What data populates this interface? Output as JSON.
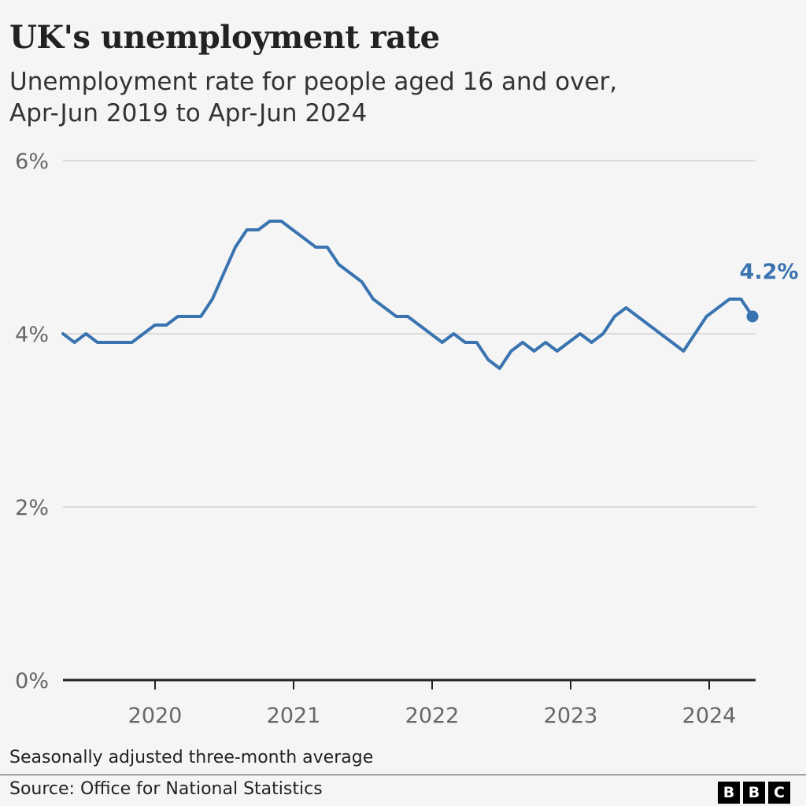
{
  "title": "UK's unemployment rate",
  "subtitle": [
    "Unemployment rate for people aged 16 and over,",
    "Apr-Jun 2019 to Apr-Jun 2024"
  ],
  "note": "Seasonally adjusted three-month average",
  "source": "Source: Office for National Statistics",
  "logo_letters": [
    "B",
    "B",
    "C"
  ],
  "colors": {
    "line": "#3a74b0",
    "grid": "#cccccc",
    "axis": "#222222",
    "tick_text": "#666666"
  },
  "chart_data": {
    "type": "line",
    "title": "UK's unemployment rate",
    "subtitle": "Unemployment rate for people aged 16 and over, Apr-Jun 2019 to Apr-Jun 2024",
    "xlabel": "",
    "ylabel": "",
    "ylim": [
      0,
      6
    ],
    "y_ticks": [
      {
        "value": 0,
        "label": "0%"
      },
      {
        "value": 2,
        "label": "2%"
      },
      {
        "value": 4,
        "label": "4%"
      },
      {
        "value": 6,
        "label": "6%"
      }
    ],
    "x_ticks": [
      "2020",
      "2021",
      "2022",
      "2023",
      "2024"
    ],
    "grid": true,
    "legend": "none",
    "x_start": "Apr-Jun 2019",
    "x_end": "Apr-Jun 2024",
    "series": [
      {
        "values": [
          4.0,
          3.9,
          4.0,
          3.9,
          3.9,
          3.9,
          3.9,
          4.0,
          4.1,
          4.1,
          4.2,
          4.2,
          4.2,
          4.4,
          4.7,
          5.0,
          5.2,
          5.2,
          5.3,
          5.3,
          5.2,
          5.1,
          5.0,
          5.0,
          4.8,
          4.7,
          4.6,
          4.4,
          4.3,
          4.2,
          4.2,
          4.1,
          4.0,
          3.9,
          4.0,
          3.9,
          3.9,
          3.7,
          3.6,
          3.8,
          3.9,
          3.8,
          3.9,
          3.8,
          3.9,
          4.0,
          3.9,
          4.0,
          4.2,
          4.3,
          4.2,
          4.1,
          4.0,
          3.9,
          3.8,
          4.0,
          4.2,
          4.3,
          4.4,
          4.4,
          4.2
        ]
      }
    ],
    "annotation": {
      "label": "4.2%",
      "value": 4.2
    }
  }
}
